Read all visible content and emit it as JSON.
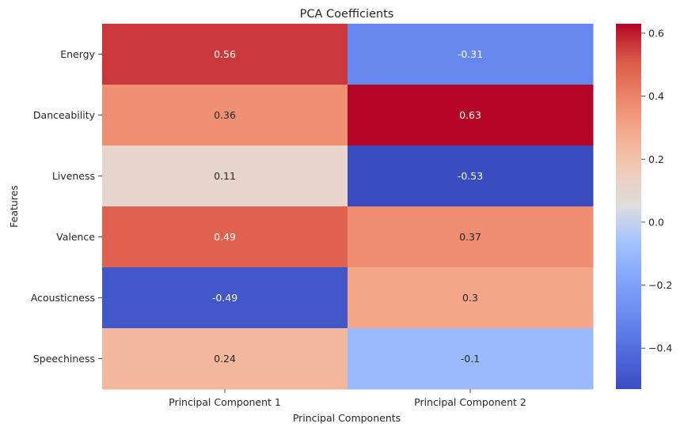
{
  "chart_data": {
    "type": "heatmap",
    "title": "PCA Coefficients",
    "xlabel": "Principal Components",
    "ylabel": "Features",
    "columns": [
      "Principal Component 1",
      "Principal Component 2"
    ],
    "rows": [
      "Energy",
      "Danceability",
      "Liveness",
      "Valence",
      "Acousticness",
      "Speechiness"
    ],
    "values": [
      [
        0.56,
        -0.31
      ],
      [
        0.36,
        0.63
      ],
      [
        0.11,
        -0.53
      ],
      [
        0.49,
        0.37
      ],
      [
        -0.49,
        0.3
      ],
      [
        0.24,
        -0.1
      ]
    ],
    "value_labels": [
      [
        "0.56",
        "-0.31"
      ],
      [
        "0.36",
        "0.63"
      ],
      [
        "0.11",
        "-0.53"
      ],
      [
        "0.49",
        "0.37"
      ],
      [
        "-0.49",
        "0.3"
      ],
      [
        "0.24",
        "-0.1"
      ]
    ],
    "colormap": "coolwarm",
    "vmin": -0.53,
    "vmax": 0.63,
    "colorbar_ticks": [
      0.6,
      0.4,
      0.2,
      0.0,
      -0.2,
      -0.4
    ],
    "colorbar_tick_labels": [
      "0.6",
      "0.4",
      "0.2",
      "0.0",
      "−0.2",
      "−0.4"
    ]
  }
}
